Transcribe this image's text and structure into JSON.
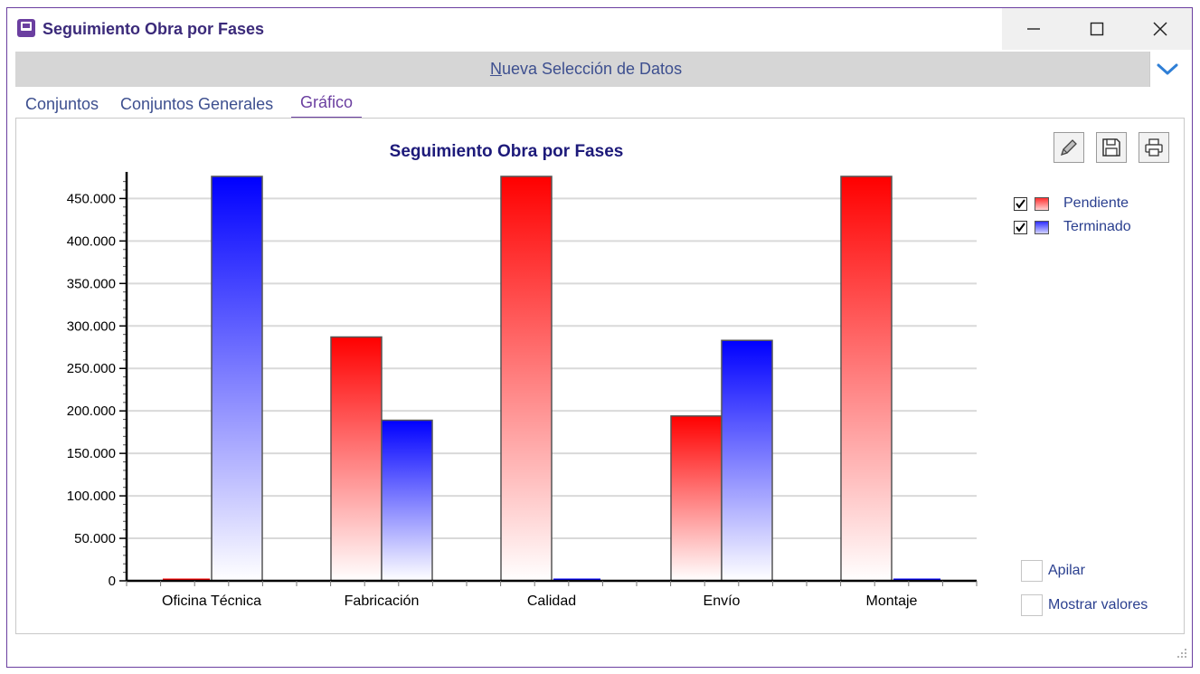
{
  "window": {
    "title": "Seguimiento Obra por Fases"
  },
  "selection_bar": {
    "label_accel": "N",
    "label_rest": "ueva Selección de Datos"
  },
  "tabs": [
    {
      "label": "Conjuntos"
    },
    {
      "label": "Conjuntos Generales"
    },
    {
      "label": "Gráfico",
      "active": true
    }
  ],
  "legend": [
    {
      "label": "Pendiente",
      "checked": true,
      "color": "#ff0000"
    },
    {
      "label": "Terminado",
      "checked": true,
      "color": "#0000ff"
    }
  ],
  "options": [
    {
      "label": "Apilar",
      "checked": false
    },
    {
      "label": "Mostrar valores",
      "checked": false
    }
  ],
  "toolbar": {
    "icons": [
      "pencil-icon",
      "save-icon",
      "print-icon"
    ]
  },
  "chart_data": {
    "type": "bar",
    "title": "Seguimiento Obra por Fases",
    "xlabel": "",
    "ylabel": "",
    "categories": [
      "Oficina Técnica",
      "Fabricación",
      "Calidad",
      "Envío",
      "Montaje"
    ],
    "series": [
      {
        "name": "Pendiente",
        "color": "#ff0000",
        "values": [
          0,
          287000,
          476000,
          194000,
          476000
        ]
      },
      {
        "name": "Terminado",
        "color": "#0000ff",
        "values": [
          476000,
          189000,
          0,
          283000,
          0
        ]
      }
    ],
    "ylim": [
      0,
      476000
    ],
    "yticks": [
      0,
      50000,
      100000,
      150000,
      200000,
      250000,
      300000,
      350000,
      400000,
      450000
    ],
    "ytick_labels": [
      "0",
      "50.000",
      "100.000",
      "150.000",
      "200.000",
      "250.000",
      "300.000",
      "350.000",
      "400.000",
      "450.000"
    ],
    "grid": true,
    "legend_position": "right"
  }
}
